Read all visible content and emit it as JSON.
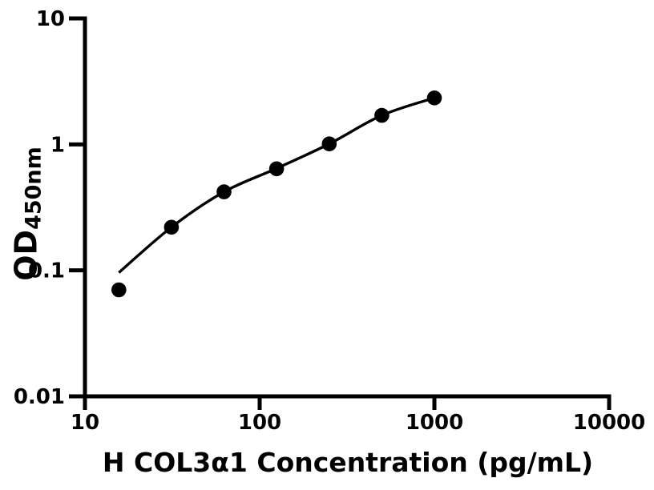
{
  "figure": {
    "background_color": "#ffffff",
    "foreground_color": "#000000",
    "x_axis_title": "H COL3α1 Concentration (pg/mL)",
    "y_axis_label_main": "OD",
    "y_axis_label_sub": "450nm"
  },
  "chart_data": {
    "type": "scatter",
    "title": "",
    "xlabel": "H COL3α1 Concentration (pg/mL)",
    "ylabel": "OD450nm",
    "x_scale": "log10",
    "y_scale": "log10",
    "xlim": [
      10,
      10000
    ],
    "ylim": [
      0.01,
      10
    ],
    "x_ticks": [
      10,
      100,
      1000,
      10000
    ],
    "y_ticks": [
      0.01,
      0.1,
      1,
      10
    ],
    "grid": false,
    "legend": false,
    "marker_color": "#000000",
    "curve_color": "#000000",
    "series": [
      {
        "name": "standard-points",
        "type": "scatter",
        "marker": "filled-circle",
        "x": [
          15.63,
          31.25,
          62.5,
          125,
          250,
          500,
          1000
        ],
        "y": [
          0.07,
          0.22,
          0.42,
          0.64,
          1.01,
          1.7,
          2.34
        ]
      },
      {
        "name": "fit-curve",
        "type": "line",
        "x": [
          15.63,
          31.25,
          62.5,
          125,
          250,
          500,
          1000
        ],
        "y": [
          0.096,
          0.22,
          0.42,
          0.645,
          1.01,
          1.7,
          2.34
        ]
      }
    ]
  }
}
